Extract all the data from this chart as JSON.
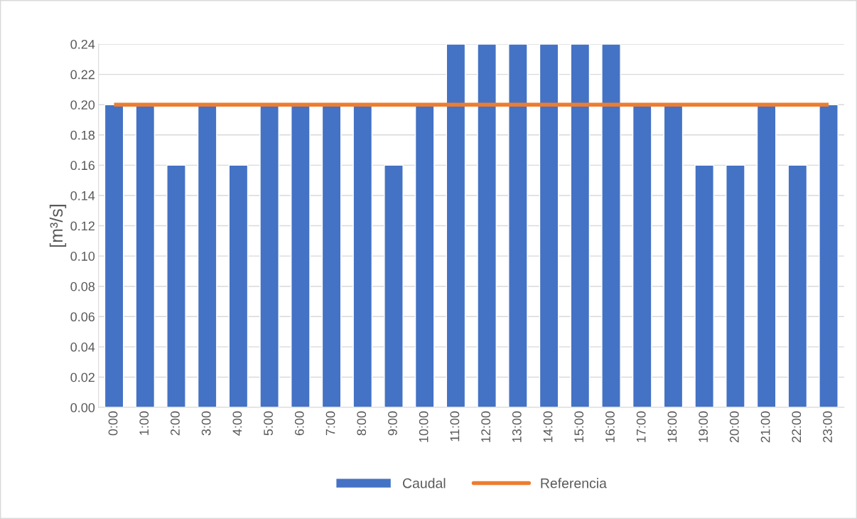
{
  "chart_data": {
    "type": "bar",
    "ylabel": "[m³/s]",
    "categories": [
      "0:00",
      "1:00",
      "2:00",
      "3:00",
      "4:00",
      "5:00",
      "6:00",
      "7:00",
      "8:00",
      "9:00",
      "10:00",
      "11:00",
      "12:00",
      "13:00",
      "14:00",
      "15:00",
      "16:00",
      "17:00",
      "18:00",
      "19:00",
      "20:00",
      "21:00",
      "22:00",
      "23:00"
    ],
    "series": [
      {
        "name": "Caudal",
        "color": "#4472c4",
        "values": [
          0.2,
          0.2,
          0.16,
          0.2,
          0.16,
          0.2,
          0.2,
          0.2,
          0.2,
          0.16,
          0.2,
          0.24,
          0.24,
          0.24,
          0.24,
          0.24,
          0.24,
          0.2,
          0.2,
          0.16,
          0.16,
          0.2,
          0.16,
          0.2
        ]
      },
      {
        "name": "Referencia",
        "type": "line",
        "color": "#ed7d31",
        "values": [
          0.2,
          0.2,
          0.2,
          0.2,
          0.2,
          0.2,
          0.2,
          0.2,
          0.2,
          0.2,
          0.2,
          0.2,
          0.2,
          0.2,
          0.2,
          0.2,
          0.2,
          0.2,
          0.2,
          0.2,
          0.2,
          0.2,
          0.2,
          0.2
        ]
      }
    ],
    "ylim": [
      0,
      0.24
    ],
    "yticks": [
      {
        "value": 0,
        "label": "0.00"
      },
      {
        "value": 0.02,
        "label": "0.02"
      },
      {
        "value": 0.04,
        "label": "0.04"
      },
      {
        "value": 0.06,
        "label": "0.06"
      },
      {
        "value": 0.08,
        "label": "0.08"
      },
      {
        "value": 0.1,
        "label": "0.10"
      },
      {
        "value": 0.12,
        "label": "0.12"
      },
      {
        "value": 0.14,
        "label": "0.14"
      },
      {
        "value": 0.16,
        "label": "0.16"
      },
      {
        "value": 0.18,
        "label": "0.18"
      },
      {
        "value": 0.2,
        "label": "0.20"
      },
      {
        "value": 0.22,
        "label": "0.22"
      },
      {
        "value": 0.24,
        "label": "0.24"
      }
    ],
    "grid": "y",
    "legend": "bottom"
  }
}
